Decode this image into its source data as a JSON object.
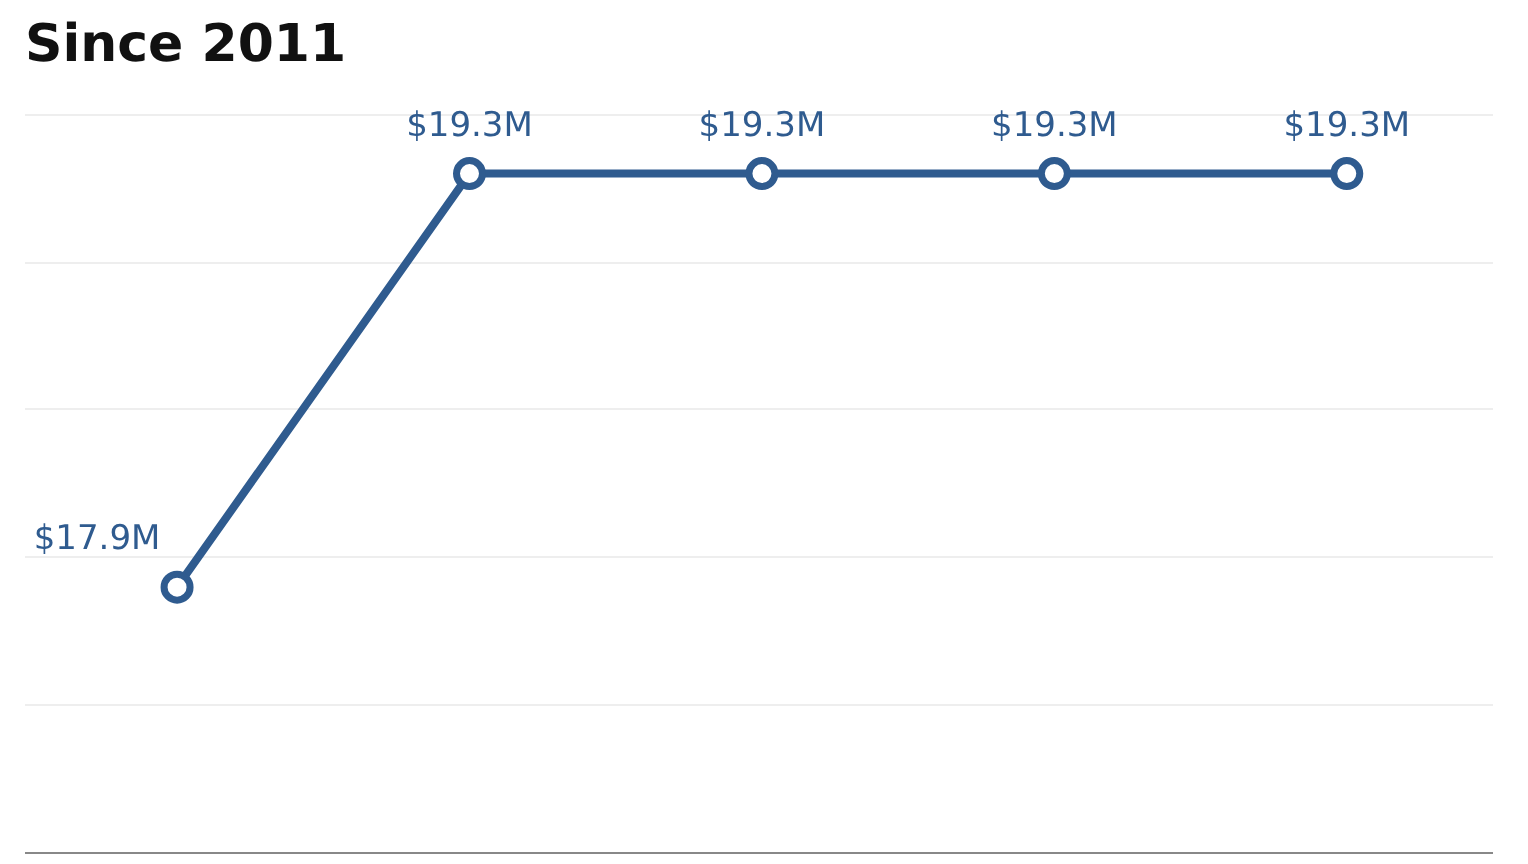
{
  "chart_data": {
    "type": "line",
    "title": "Since 2011",
    "categories": [
      null,
      null,
      null,
      null,
      null
    ],
    "values": [
      17.9,
      19.3,
      19.3,
      19.3,
      19.3
    ],
    "value_labels": [
      "$17.9M",
      "$19.3M",
      "$19.3M",
      "$19.3M",
      "$19.3M"
    ],
    "color": "#2f5b8f",
    "marker": "circle",
    "line_style": "solid",
    "yticks": [
      {
        "value": 17.5,
        "label": null
      },
      {
        "value": 18,
        "label": null
      },
      {
        "value": 18.5,
        "label": null
      },
      {
        "value": 19,
        "label": null
      },
      {
        "value": 19.5,
        "label": null
      }
    ],
    "grid": "y",
    "tick_labels": false
  }
}
